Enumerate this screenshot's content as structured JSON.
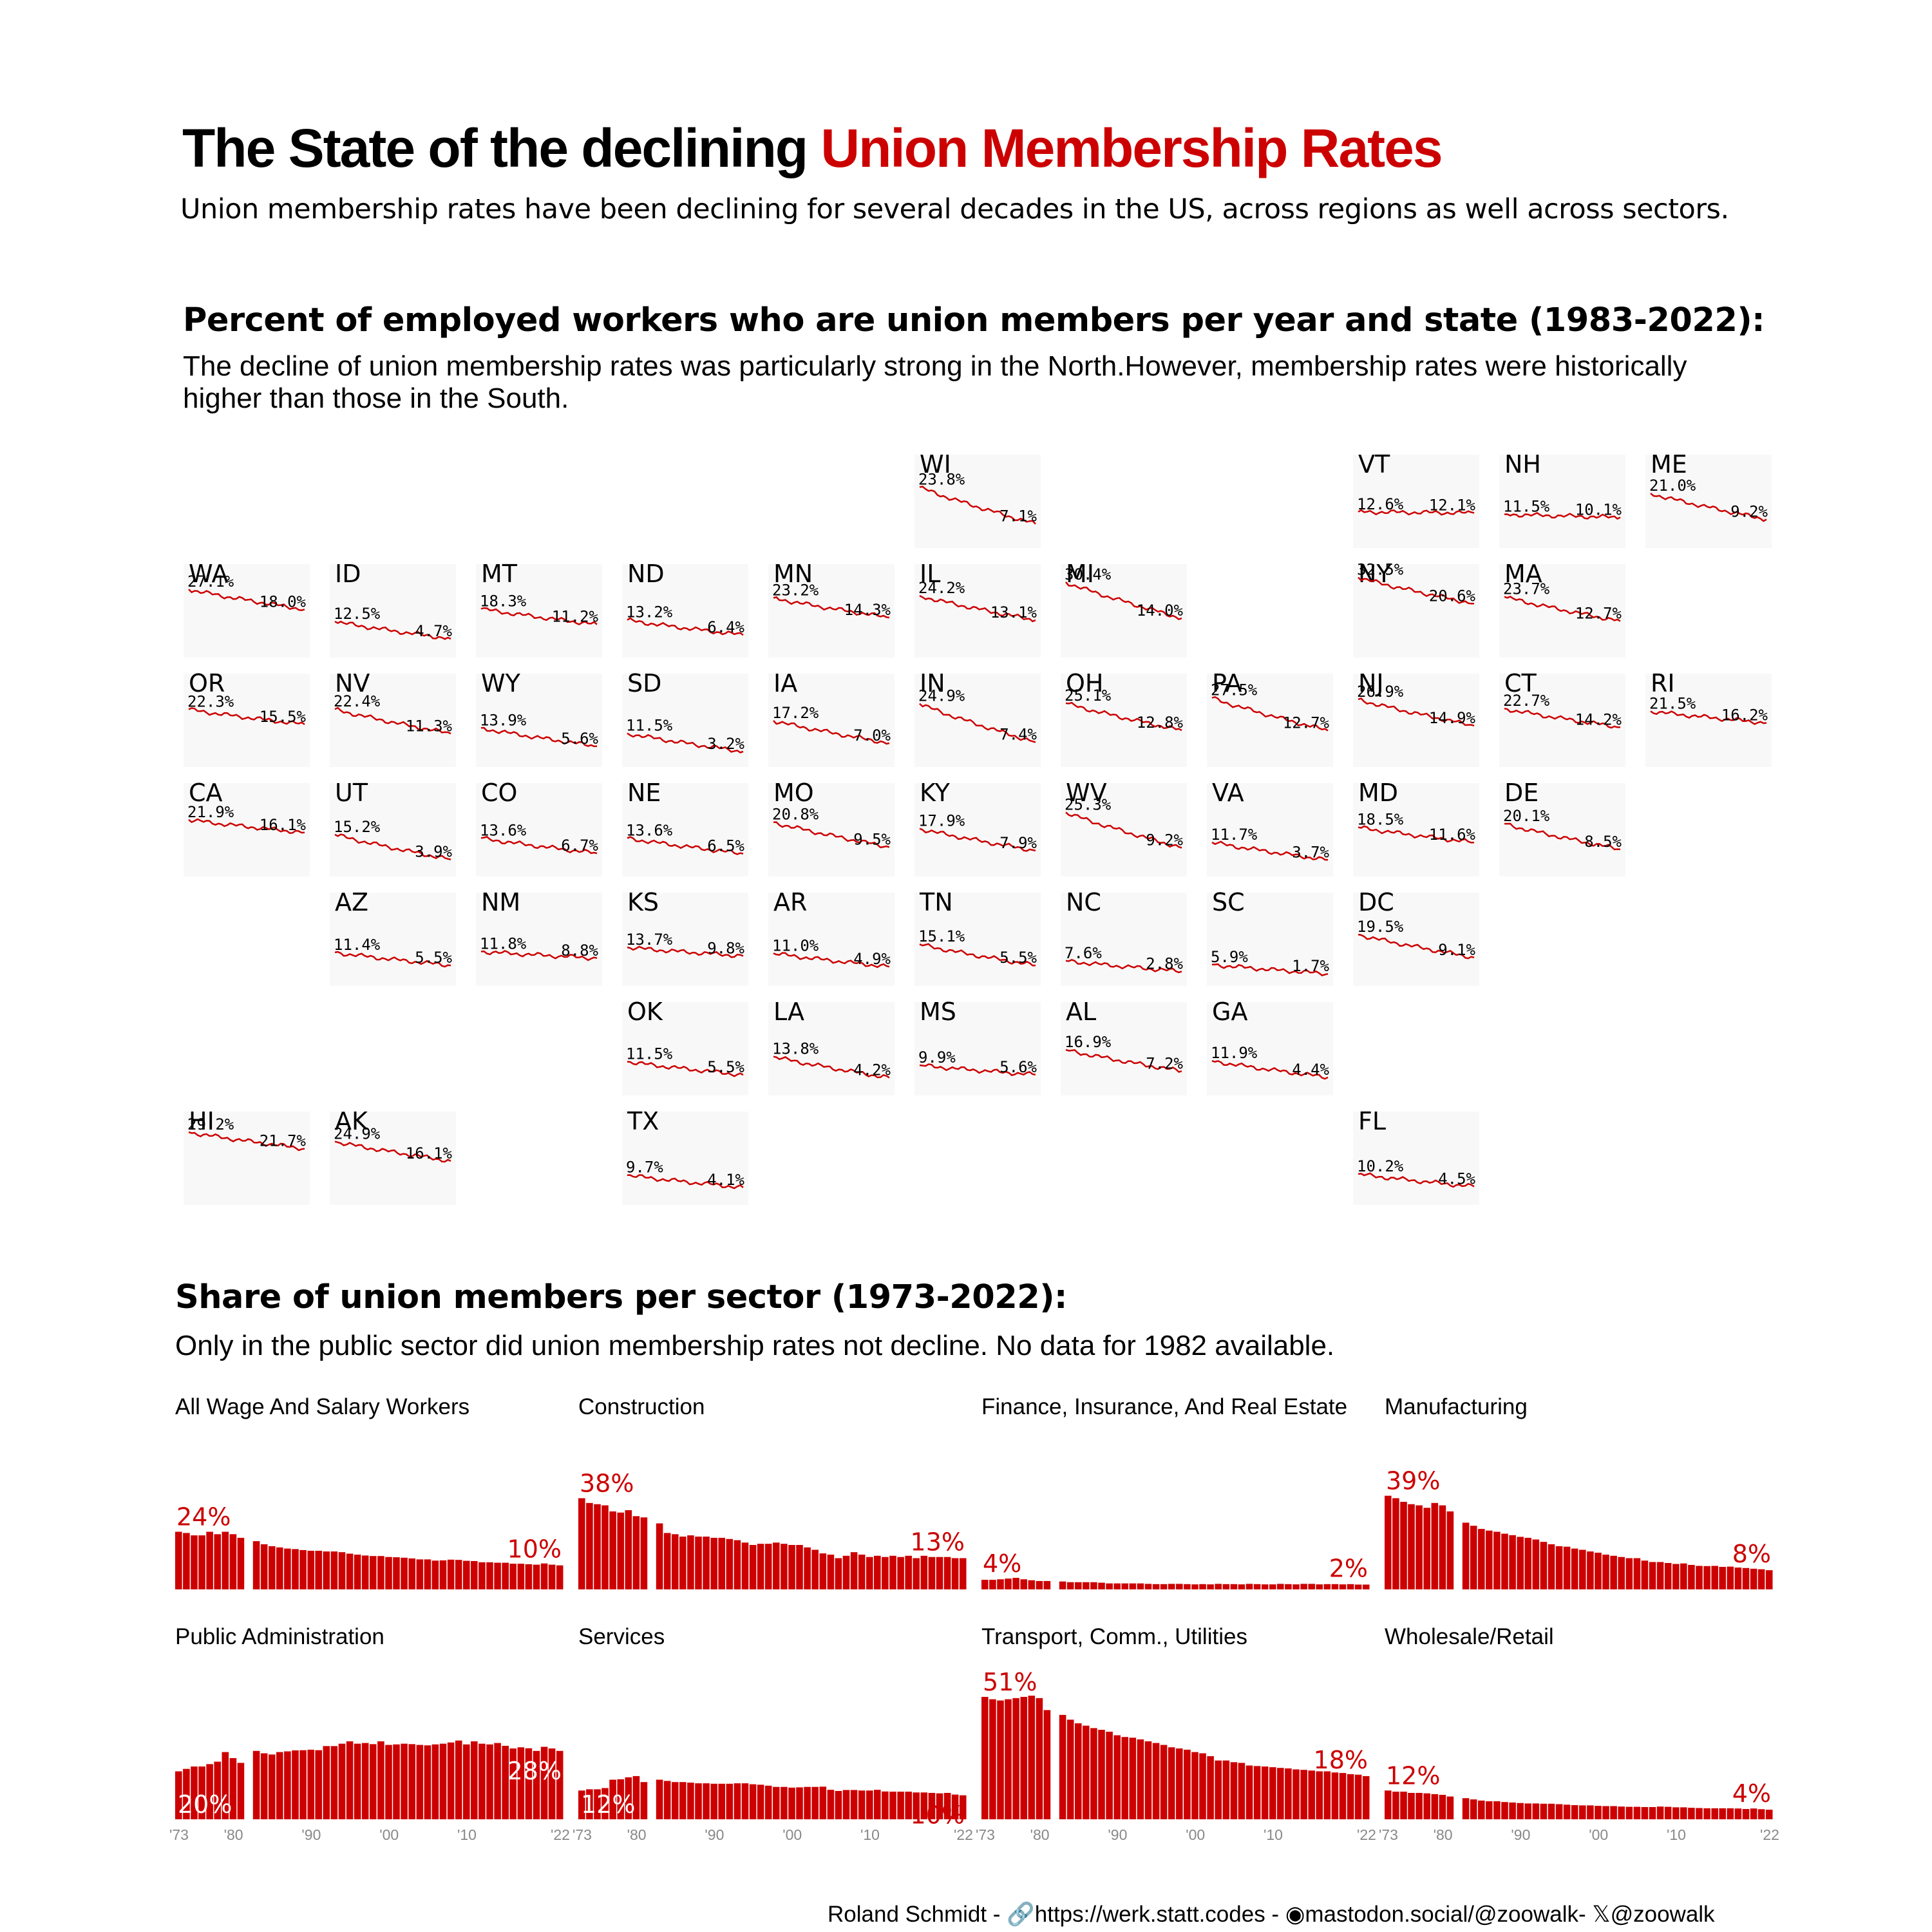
{
  "title": {
    "prefix": "The State of the declining ",
    "highlight": "Union Membership Rates"
  },
  "subtitle": "Union membership rates have been declining for several decades in the US, across regions as well across sectors.",
  "map_section": {
    "title": "Percent of employed workers who are union members per year and state (1983-2022):",
    "subtitle": "The decline of union membership rates was particularly strong in the North.However, membership rates were historically higher than those in the South."
  },
  "sector_section": {
    "title": "Share of union members per sector (1973-2022):",
    "subtitle": "Only in the public sector did union membership rates not decline. No data for 1982 available."
  },
  "footer": {
    "author": "Roland Schmidt - ",
    "website_icon": "link-icon",
    "website": "https://werk.statt.codes",
    "mastodon_icon": "mastodon-icon",
    "mastodon": "mastodon.social/@zoowalk",
    "x_icon": "x-icon",
    "x": "@zoowalk"
  },
  "colors": {
    "accent": "#cc0000",
    "tile_background": "#f8f8f8",
    "tick_text": "#888888"
  },
  "chart_data": [
    {
      "type": "line",
      "title": "Percent of employed workers who are union members per year and state (1983-2022):",
      "x_range": [
        1983,
        2022
      ],
      "states": [
        {
          "abbr": "WI",
          "row": 0,
          "col": 5,
          "start": 23.8,
          "end": 7.1
        },
        {
          "abbr": "VT",
          "row": 0,
          "col": 8,
          "start": 12.6,
          "end": 12.1
        },
        {
          "abbr": "NH",
          "row": 0,
          "col": 9,
          "start": 11.5,
          "end": 10.1
        },
        {
          "abbr": "ME",
          "row": 0,
          "col": 10,
          "start": 21.0,
          "end": 9.2
        },
        {
          "abbr": "WA",
          "row": 1,
          "col": 0,
          "start": 27.1,
          "end": 18.0
        },
        {
          "abbr": "ID",
          "row": 1,
          "col": 1,
          "start": 12.5,
          "end": 4.7
        },
        {
          "abbr": "MT",
          "row": 1,
          "col": 2,
          "start": 18.3,
          "end": 11.2
        },
        {
          "abbr": "ND",
          "row": 1,
          "col": 3,
          "start": 13.2,
          "end": 6.4
        },
        {
          "abbr": "MN",
          "row": 1,
          "col": 4,
          "start": 23.2,
          "end": 14.3
        },
        {
          "abbr": "IL",
          "row": 1,
          "col": 5,
          "start": 24.2,
          "end": 13.1
        },
        {
          "abbr": "MI",
          "row": 1,
          "col": 6,
          "start": 30.4,
          "end": 14.0
        },
        {
          "abbr": "NY",
          "row": 1,
          "col": 8,
          "start": 32.5,
          "end": 20.6
        },
        {
          "abbr": "MA",
          "row": 1,
          "col": 9,
          "start": 23.7,
          "end": 12.7
        },
        {
          "abbr": "OR",
          "row": 2,
          "col": 0,
          "start": 22.3,
          "end": 15.5
        },
        {
          "abbr": "NV",
          "row": 2,
          "col": 1,
          "start": 22.4,
          "end": 11.3
        },
        {
          "abbr": "WY",
          "row": 2,
          "col": 2,
          "start": 13.9,
          "end": 5.6
        },
        {
          "abbr": "SD",
          "row": 2,
          "col": 3,
          "start": 11.5,
          "end": 3.2
        },
        {
          "abbr": "IA",
          "row": 2,
          "col": 4,
          "start": 17.2,
          "end": 7.0
        },
        {
          "abbr": "IN",
          "row": 2,
          "col": 5,
          "start": 24.9,
          "end": 7.4
        },
        {
          "abbr": "OH",
          "row": 2,
          "col": 6,
          "start": 25.1,
          "end": 12.8
        },
        {
          "abbr": "PA",
          "row": 2,
          "col": 7,
          "start": 27.5,
          "end": 12.7
        },
        {
          "abbr": "NJ",
          "row": 2,
          "col": 8,
          "start": 26.9,
          "end": 14.9
        },
        {
          "abbr": "CT",
          "row": 2,
          "col": 9,
          "start": 22.7,
          "end": 14.2
        },
        {
          "abbr": "RI",
          "row": 2,
          "col": 10,
          "start": 21.5,
          "end": 16.2
        },
        {
          "abbr": "CA",
          "row": 3,
          "col": 0,
          "start": 21.9,
          "end": 16.1
        },
        {
          "abbr": "UT",
          "row": 3,
          "col": 1,
          "start": 15.2,
          "end": 3.9
        },
        {
          "abbr": "CO",
          "row": 3,
          "col": 2,
          "start": 13.6,
          "end": 6.7
        },
        {
          "abbr": "NE",
          "row": 3,
          "col": 3,
          "start": 13.6,
          "end": 6.5
        },
        {
          "abbr": "MO",
          "row": 3,
          "col": 4,
          "start": 20.8,
          "end": 9.5
        },
        {
          "abbr": "KY",
          "row": 3,
          "col": 5,
          "start": 17.9,
          "end": 7.9
        },
        {
          "abbr": "WV",
          "row": 3,
          "col": 6,
          "start": 25.3,
          "end": 9.2
        },
        {
          "abbr": "VA",
          "row": 3,
          "col": 7,
          "start": 11.7,
          "end": 3.7
        },
        {
          "abbr": "MD",
          "row": 3,
          "col": 8,
          "start": 18.5,
          "end": 11.6
        },
        {
          "abbr": "DE",
          "row": 3,
          "col": 9,
          "start": 20.1,
          "end": 8.5
        },
        {
          "abbr": "AZ",
          "row": 4,
          "col": 1,
          "start": 11.4,
          "end": 5.5
        },
        {
          "abbr": "NM",
          "row": 4,
          "col": 2,
          "start": 11.8,
          "end": 8.8
        },
        {
          "abbr": "KS",
          "row": 4,
          "col": 3,
          "start": 13.7,
          "end": 9.8
        },
        {
          "abbr": "AR",
          "row": 4,
          "col": 4,
          "start": 11.0,
          "end": 4.9
        },
        {
          "abbr": "TN",
          "row": 4,
          "col": 5,
          "start": 15.1,
          "end": 5.5
        },
        {
          "abbr": "NC",
          "row": 4,
          "col": 6,
          "start": 7.6,
          "end": 2.8
        },
        {
          "abbr": "SC",
          "row": 4,
          "col": 7,
          "start": 5.9,
          "end": 1.7
        },
        {
          "abbr": "DC",
          "row": 4,
          "col": 8,
          "start": 19.5,
          "end": 9.1
        },
        {
          "abbr": "OK",
          "row": 5,
          "col": 3,
          "start": 11.5,
          "end": 5.5
        },
        {
          "abbr": "LA",
          "row": 5,
          "col": 4,
          "start": 13.8,
          "end": 4.2
        },
        {
          "abbr": "MS",
          "row": 5,
          "col": 5,
          "start": 9.9,
          "end": 5.6
        },
        {
          "abbr": "AL",
          "row": 5,
          "col": 6,
          "start": 16.9,
          "end": 7.2
        },
        {
          "abbr": "GA",
          "row": 5,
          "col": 7,
          "start": 11.9,
          "end": 4.4
        },
        {
          "abbr": "HI",
          "row": 6,
          "col": 0,
          "start": 29.2,
          "end": 21.7
        },
        {
          "abbr": "AK",
          "row": 6,
          "col": 1,
          "start": 24.9,
          "end": 16.1
        },
        {
          "abbr": "TX",
          "row": 6,
          "col": 3,
          "start": 9.7,
          "end": 4.1
        },
        {
          "abbr": "FL",
          "row": 6,
          "col": 8,
          "start": 10.2,
          "end": 4.5
        }
      ]
    },
    {
      "type": "bar",
      "title": "Share of union members per sector (1973-2022):",
      "years": [
        1973,
        1974,
        1975,
        1976,
        1977,
        1978,
        1979,
        1980,
        1981,
        1983,
        1984,
        1985,
        1986,
        1987,
        1988,
        1989,
        1990,
        1991,
        1992,
        1993,
        1994,
        1995,
        1996,
        1997,
        1998,
        1999,
        2000,
        2001,
        2002,
        2003,
        2004,
        2005,
        2006,
        2007,
        2008,
        2009,
        2010,
        2011,
        2012,
        2013,
        2014,
        2015,
        2016,
        2017,
        2018,
        2019,
        2020,
        2021,
        2022
      ],
      "tick_labels": [
        "'73",
        "'80",
        "'90",
        "'00",
        "'10",
        "'22"
      ],
      "tick_years": [
        1973,
        1980,
        1990,
        2000,
        2010,
        2022
      ],
      "ylim": [
        0,
        55
      ],
      "missing_year": 1982,
      "sectors": [
        {
          "name": "All Wage And Salary Workers",
          "start_label": "24%",
          "end_label": "10%",
          "values": [
            24,
            23.5,
            22.5,
            22.5,
            24,
            23,
            24,
            23,
            21.5,
            20.1,
            18.8,
            18,
            17.5,
            17,
            16.8,
            16.4,
            16.1,
            16.1,
            15.8,
            15.8,
            15.5,
            14.9,
            14.5,
            14.1,
            13.9,
            13.9,
            13.5,
            13.4,
            13.2,
            12.9,
            12.5,
            12.5,
            12,
            12.1,
            12.4,
            12.3,
            11.9,
            11.8,
            11.3,
            11.3,
            11.1,
            11.1,
            10.7,
            10.7,
            10.5,
            10.3,
            10.8,
            10.3,
            10
          ]
        },
        {
          "name": "Construction",
          "start_label": "38%",
          "end_label": "13%",
          "values": [
            38,
            36,
            35.5,
            35,
            32.5,
            32,
            33,
            30.5,
            30,
            27.5,
            23.5,
            23,
            22,
            22.5,
            22,
            22,
            21.5,
            21.5,
            21,
            20.5,
            19.5,
            18.5,
            19,
            19,
            19.5,
            19,
            18.5,
            18.5,
            17.5,
            16.5,
            15,
            14.5,
            13,
            14,
            15.5,
            14.5,
            13.5,
            14,
            13.5,
            14,
            13.5,
            14,
            13,
            14,
            13.5,
            13.5,
            13.5,
            13,
            13
          ]
        },
        {
          "name": "Finance, Insurance, And Real Estate",
          "start_label": "4%",
          "end_label": "2%",
          "values": [
            4,
            4,
            4.2,
            4.5,
            4.8,
            4.2,
            3.8,
            3.5,
            3.5,
            3.3,
            3,
            3,
            3,
            3,
            2.8,
            2.5,
            2.5,
            2.5,
            2.5,
            2.5,
            2.3,
            2.2,
            2.2,
            2.3,
            2.3,
            2.2,
            2.1,
            2.2,
            2.1,
            2.3,
            2.2,
            2.2,
            2.1,
            2.3,
            2.2,
            2.1,
            2.1,
            2.3,
            2.2,
            2.1,
            2.3,
            2.3,
            2.1,
            2.2,
            2.2,
            2.1,
            2.2,
            2,
            2
          ]
        },
        {
          "name": "Manufacturing",
          "start_label": "39%",
          "end_label": "8%",
          "values": [
            39,
            38,
            36.5,
            35.5,
            35,
            34,
            36,
            35,
            32.5,
            27.8,
            26.5,
            25.2,
            24.5,
            24,
            23.2,
            22.6,
            21.9,
            21.5,
            20.8,
            19.8,
            18.8,
            18,
            17.8,
            17,
            16.5,
            15.8,
            15.3,
            14.5,
            14,
            13.5,
            13,
            13,
            12,
            11.4,
            11.4,
            11,
            10.6,
            10.8,
            10.2,
            9.8,
            9.7,
            9.8,
            9.4,
            9.5,
            9.1,
            8.9,
            8.6,
            8.4,
            8
          ]
        },
        {
          "name": "Public Administration",
          "start_label": "20%",
          "end_label": "28%",
          "values": [
            20,
            21,
            22,
            22,
            23,
            24,
            28,
            25.5,
            23.5,
            28.5,
            27.5,
            27,
            28,
            28.3,
            28.7,
            28.8,
            29,
            28.8,
            30.5,
            30.5,
            31.5,
            32.5,
            31.5,
            31.8,
            31.3,
            32.5,
            31,
            31.2,
            31.5,
            31.3,
            31,
            30.8,
            31.2,
            31.5,
            32,
            32.8,
            31.2,
            32.5,
            31.5,
            31.2,
            31.8,
            30.6,
            29.5,
            30,
            29.6,
            28.5,
            30.2,
            29.5,
            28.5
          ]
        },
        {
          "name": "Services",
          "start_label": "12%",
          "end_label": "10%",
          "values": [
            12,
            12.5,
            12.5,
            13,
            16.5,
            16.7,
            17.5,
            18,
            15.5,
            16.5,
            16,
            15.5,
            15.5,
            15.3,
            15,
            15,
            14.8,
            14.8,
            14.8,
            15,
            15,
            14.6,
            14.4,
            14,
            13.5,
            13.5,
            13.2,
            13.3,
            13.5,
            13.5,
            13.6,
            12.3,
            11.8,
            12.2,
            12.2,
            12,
            12,
            12.3,
            11.6,
            11.5,
            11.5,
            11.5,
            11.2,
            11.2,
            11,
            10.8,
            11,
            10.3,
            10
          ]
        },
        {
          "name": "Transport, Comm., Utilities",
          "start_label": "51%",
          "end_label": "18%",
          "values": [
            51,
            50,
            49.5,
            50,
            50.5,
            51,
            51.5,
            50.5,
            45.5,
            43.5,
            41.5,
            40,
            39,
            38,
            37.3,
            36.5,
            35,
            34.3,
            34,
            33.3,
            32.5,
            31.8,
            31,
            30,
            29.5,
            29,
            28,
            27.5,
            26.3,
            24.5,
            24.5,
            23.8,
            23.5,
            22.4,
            22.2,
            22,
            21.7,
            21.4,
            21.2,
            20.8,
            20.6,
            20.3,
            20,
            20,
            19.5,
            19.3,
            18.8,
            18.6,
            18
          ]
        },
        {
          "name": "Wholesale/Retail",
          "start_label": "12%",
          "end_label": "4%",
          "values": [
            12,
            11.5,
            11.5,
            11,
            11,
            10.8,
            10.5,
            10.2,
            9.5,
            8.8,
            8.3,
            7.8,
            7.5,
            7.5,
            7.2,
            7,
            6.8,
            6.6,
            6.6,
            6.5,
            6.5,
            6.3,
            6.1,
            5.9,
            5.8,
            5.8,
            5.6,
            5.5,
            5.5,
            5.3,
            5.2,
            5.2,
            5.1,
            5.1,
            5.3,
            5.2,
            5,
            5,
            4.8,
            4.7,
            4.6,
            4.6,
            4.6,
            4.6,
            4.5,
            4.3,
            4.5,
            4.2,
            4
          ]
        }
      ]
    }
  ]
}
